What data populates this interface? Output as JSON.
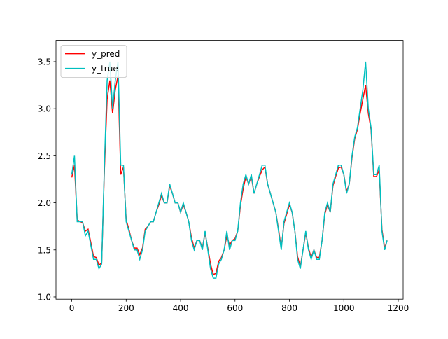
{
  "chart_data": {
    "type": "line",
    "x": [
      0,
      10,
      20,
      30,
      40,
      50,
      60,
      70,
      80,
      90,
      100,
      110,
      120,
      130,
      140,
      150,
      160,
      170,
      180,
      190,
      200,
      210,
      220,
      230,
      240,
      250,
      260,
      270,
      280,
      290,
      300,
      310,
      320,
      330,
      340,
      350,
      360,
      370,
      380,
      390,
      400,
      410,
      420,
      430,
      440,
      450,
      460,
      470,
      480,
      490,
      500,
      510,
      520,
      530,
      540,
      550,
      560,
      570,
      580,
      590,
      600,
      610,
      620,
      630,
      640,
      650,
      660,
      670,
      680,
      690,
      700,
      710,
      720,
      730,
      740,
      750,
      760,
      770,
      780,
      790,
      800,
      810,
      820,
      830,
      840,
      850,
      860,
      870,
      880,
      890,
      900,
      910,
      920,
      930,
      940,
      950,
      960,
      970,
      980,
      990,
      1000,
      1010,
      1020,
      1030,
      1040,
      1050,
      1060,
      1070,
      1080,
      1090,
      1100,
      1110,
      1120,
      1130,
      1140,
      1150,
      1159
    ],
    "series": [
      {
        "name": "y_pred",
        "color": "#ff0000",
        "values": [
          2.27,
          2.4,
          1.82,
          1.8,
          1.79,
          1.7,
          1.72,
          1.58,
          1.43,
          1.42,
          1.34,
          1.36,
          2.35,
          3.1,
          3.3,
          2.95,
          3.2,
          3.35,
          2.3,
          2.38,
          1.82,
          1.72,
          1.6,
          1.52,
          1.52,
          1.45,
          1.52,
          1.72,
          1.75,
          1.8,
          1.8,
          1.9,
          1.98,
          2.08,
          2.0,
          2.0,
          2.18,
          2.1,
          2.0,
          2.0,
          1.9,
          1.98,
          1.9,
          1.8,
          1.63,
          1.52,
          1.6,
          1.6,
          1.52,
          1.68,
          1.52,
          1.35,
          1.24,
          1.25,
          1.38,
          1.42,
          1.5,
          1.65,
          1.55,
          1.6,
          1.62,
          1.7,
          1.97,
          2.15,
          2.28,
          2.2,
          2.28,
          2.1,
          2.2,
          2.28,
          2.35,
          2.38,
          2.2,
          2.1,
          2.0,
          1.9,
          1.72,
          1.52,
          1.78,
          1.88,
          1.98,
          1.9,
          1.7,
          1.43,
          1.32,
          1.5,
          1.68,
          1.52,
          1.42,
          1.5,
          1.42,
          1.42,
          1.6,
          1.88,
          1.98,
          1.9,
          2.18,
          2.28,
          2.37,
          2.38,
          2.3,
          2.12,
          2.2,
          2.48,
          2.68,
          2.78,
          2.95,
          3.1,
          3.25,
          2.95,
          2.78,
          2.28,
          2.28,
          2.35,
          1.72,
          1.52,
          1.6
        ]
      },
      {
        "name": "y_true",
        "color": "#00bfbf",
        "values": [
          2.3,
          2.5,
          1.8,
          1.8,
          1.8,
          1.65,
          1.7,
          1.55,
          1.4,
          1.4,
          1.3,
          1.35,
          2.4,
          3.3,
          3.5,
          3.0,
          3.3,
          3.5,
          2.4,
          2.4,
          1.8,
          1.7,
          1.6,
          1.5,
          1.5,
          1.4,
          1.5,
          1.7,
          1.75,
          1.8,
          1.8,
          1.9,
          2.0,
          2.1,
          2.0,
          2.0,
          2.2,
          2.1,
          2.0,
          2.0,
          1.9,
          2.0,
          1.9,
          1.8,
          1.6,
          1.5,
          1.6,
          1.6,
          1.5,
          1.7,
          1.5,
          1.3,
          1.2,
          1.2,
          1.35,
          1.4,
          1.5,
          1.7,
          1.5,
          1.6,
          1.6,
          1.7,
          2.0,
          2.2,
          2.3,
          2.2,
          2.3,
          2.1,
          2.2,
          2.3,
          2.4,
          2.4,
          2.2,
          2.1,
          2.0,
          1.9,
          1.7,
          1.5,
          1.8,
          1.9,
          2.0,
          1.9,
          1.7,
          1.4,
          1.3,
          1.5,
          1.7,
          1.5,
          1.4,
          1.5,
          1.4,
          1.4,
          1.6,
          1.9,
          2.0,
          1.9,
          2.2,
          2.3,
          2.4,
          2.4,
          2.3,
          2.1,
          2.2,
          2.5,
          2.7,
          2.8,
          3.0,
          3.2,
          3.5,
          3.0,
          2.8,
          2.3,
          2.3,
          2.4,
          1.7,
          1.5,
          1.6
        ]
      }
    ],
    "xlim": [
      -58,
      1218
    ],
    "xticks": [
      0,
      200,
      400,
      600,
      800,
      1000,
      1200
    ],
    "ylim": [
      0.976,
      3.726
    ],
    "yticks": [
      {
        "value": 1,
        "label": "1.0"
      },
      1.5,
      {
        "value": 2,
        "label": "2.0"
      },
      2.5,
      {
        "value": 3,
        "label": "3.0"
      },
      3.5
    ],
    "legend": "upper left"
  }
}
